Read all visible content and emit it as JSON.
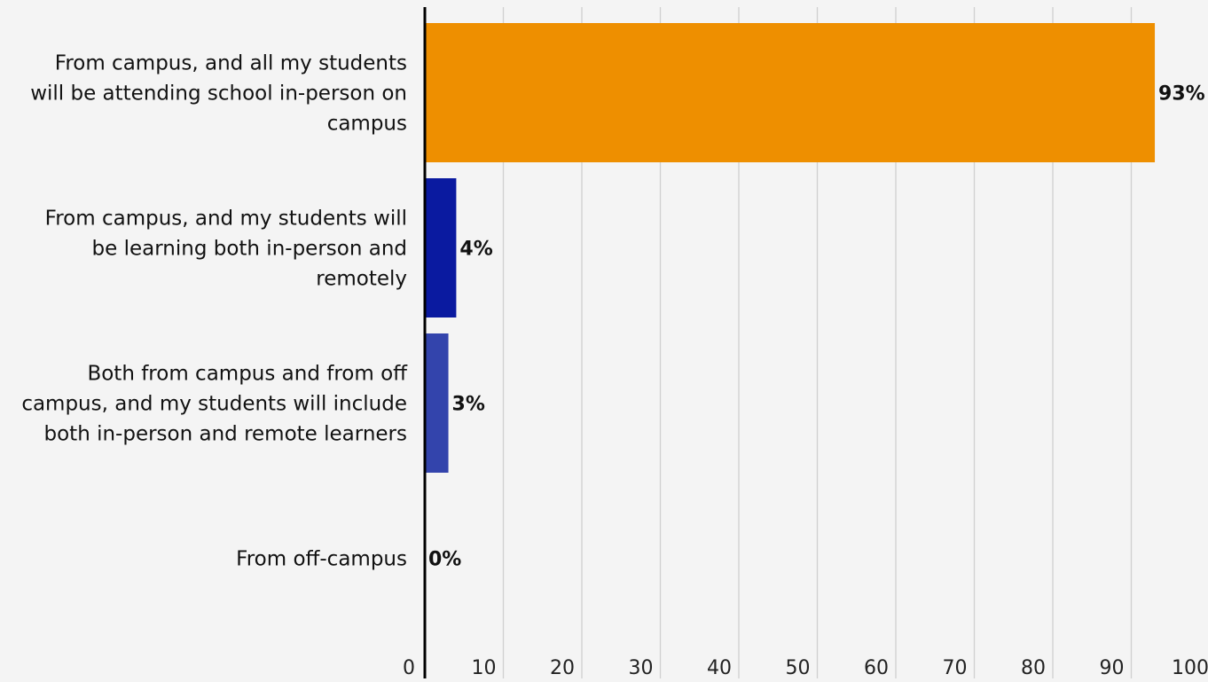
{
  "chart_data": {
    "type": "bar",
    "orientation": "horizontal",
    "categories": [
      [
        "From campus, and all my students",
        "will be attending school in-person on",
        "campus"
      ],
      [
        "From campus, and my students will",
        "be learning both in-person and",
        "remotely"
      ],
      [
        "Both from campus and from off",
        "campus, and my students will include",
        "both in-person and remote learners"
      ],
      [
        "From off-campus"
      ]
    ],
    "values": [
      93,
      4,
      3,
      0
    ],
    "value_labels": [
      "93%",
      "4%",
      "3%",
      "0%"
    ],
    "colors": [
      "#ee8f00",
      "#0a1aa0",
      "#3344ac",
      "#3344ac"
    ],
    "xlim": [
      0,
      100
    ],
    "x_ticks": [
      0,
      10,
      20,
      30,
      40,
      50,
      60,
      70,
      80,
      90,
      100
    ],
    "x_tick_labels": [
      "0",
      "10",
      "20",
      "30",
      "40",
      "50",
      "60",
      "70",
      "80",
      "90",
      "100"
    ],
    "grid": true,
    "legend": "none"
  }
}
